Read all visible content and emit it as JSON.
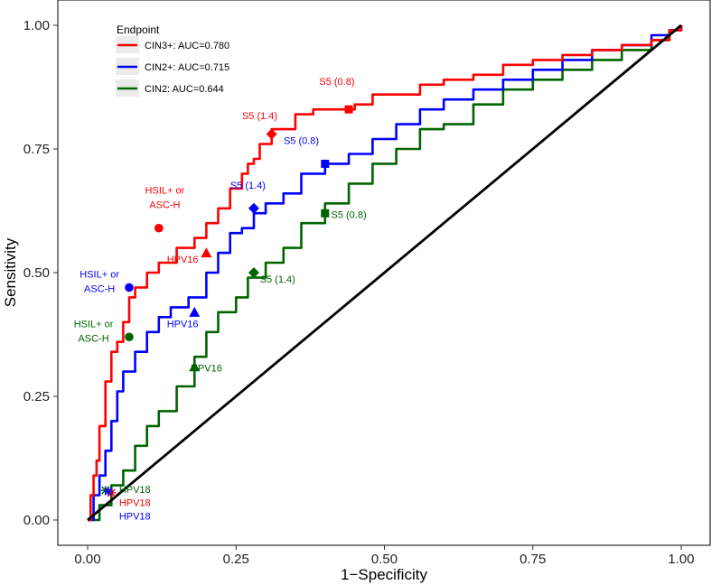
{
  "chart_data": {
    "type": "line",
    "xlabel": "1−Specificity",
    "ylabel": "Sensitivity",
    "xlim": [
      0,
      1
    ],
    "ylim": [
      0,
      1
    ],
    "x_ticks": [
      "0.00",
      "0.25",
      "0.50",
      "0.75",
      "1.00"
    ],
    "y_ticks": [
      "0.00",
      "0.25",
      "0.50",
      "0.75",
      "1.00"
    ],
    "grid": false,
    "legend": {
      "title": "Endpoint",
      "position": "top-left",
      "entries": [
        "CIN3+: AUC=0.780",
        "CIN2+: AUC=0.715",
        "CIN2: AUC=0.644"
      ]
    },
    "colors": {
      "CIN3+": "#ff0000",
      "CIN2+": "#0000ff",
      "CIN2": "#006400",
      "reference": "#000000"
    },
    "series": [
      {
        "name": "CIN3+",
        "color": "#ff0000",
        "x": [
          0,
          0.005,
          0.01,
          0.015,
          0.02,
          0.03,
          0.04,
          0.05,
          0.06,
          0.07,
          0.08,
          0.1,
          0.12,
          0.15,
          0.18,
          0.2,
          0.22,
          0.24,
          0.26,
          0.27,
          0.28,
          0.29,
          0.31,
          0.33,
          0.35,
          0.38,
          0.42,
          0.45,
          0.48,
          0.52,
          0.56,
          0.6,
          0.65,
          0.7,
          0.75,
          0.8,
          0.85,
          0.9,
          0.95,
          0.98,
          1.0
        ],
        "y": [
          0,
          0.05,
          0.09,
          0.12,
          0.19,
          0.28,
          0.34,
          0.36,
          0.4,
          0.45,
          0.47,
          0.5,
          0.52,
          0.55,
          0.57,
          0.6,
          0.63,
          0.67,
          0.7,
          0.72,
          0.73,
          0.76,
          0.79,
          0.79,
          0.82,
          0.83,
          0.83,
          0.84,
          0.86,
          0.86,
          0.88,
          0.89,
          0.9,
          0.92,
          0.93,
          0.94,
          0.95,
          0.96,
          0.97,
          0.99,
          1.0
        ]
      },
      {
        "name": "CIN2+",
        "color": "#0000ff",
        "x": [
          0,
          0.01,
          0.02,
          0.03,
          0.04,
          0.05,
          0.06,
          0.08,
          0.1,
          0.12,
          0.14,
          0.17,
          0.2,
          0.22,
          0.24,
          0.26,
          0.28,
          0.3,
          0.33,
          0.36,
          0.4,
          0.44,
          0.48,
          0.52,
          0.56,
          0.6,
          0.65,
          0.7,
          0.75,
          0.8,
          0.85,
          0.9,
          0.95,
          0.98,
          1.0
        ],
        "y": [
          0,
          0.05,
          0.09,
          0.14,
          0.2,
          0.26,
          0.3,
          0.34,
          0.38,
          0.41,
          0.43,
          0.45,
          0.5,
          0.54,
          0.58,
          0.59,
          0.62,
          0.64,
          0.66,
          0.7,
          0.72,
          0.74,
          0.77,
          0.8,
          0.83,
          0.85,
          0.87,
          0.89,
          0.91,
          0.93,
          0.95,
          0.96,
          0.98,
          0.99,
          1.0
        ]
      },
      {
        "name": "CIN2",
        "color": "#006400",
        "x": [
          0,
          0.02,
          0.04,
          0.06,
          0.08,
          0.1,
          0.12,
          0.15,
          0.18,
          0.2,
          0.22,
          0.25,
          0.27,
          0.3,
          0.33,
          0.36,
          0.4,
          0.44,
          0.48,
          0.52,
          0.56,
          0.6,
          0.65,
          0.7,
          0.75,
          0.8,
          0.85,
          0.9,
          0.95,
          0.98,
          1.0
        ],
        "y": [
          0,
          0.03,
          0.07,
          0.1,
          0.15,
          0.19,
          0.22,
          0.27,
          0.33,
          0.38,
          0.42,
          0.45,
          0.49,
          0.52,
          0.55,
          0.6,
          0.64,
          0.68,
          0.72,
          0.75,
          0.79,
          0.8,
          0.84,
          0.87,
          0.89,
          0.91,
          0.93,
          0.95,
          0.97,
          0.99,
          1.0
        ]
      },
      {
        "name": "",
        "color": "#000000",
        "x": [
          0,
          1
        ],
        "y": [
          0,
          1
        ]
      }
    ],
    "markers": [
      {
        "series": "CIN3+",
        "shape": "circle",
        "x": 0.12,
        "y": 0.59,
        "label": "HSIL+ or\nASC-H",
        "lx": 0.13,
        "ly": 0.66
      },
      {
        "series": "CIN3+",
        "shape": "triangle",
        "x": 0.2,
        "y": 0.54,
        "label": "HPV16",
        "lx": 0.16,
        "ly": 0.52
      },
      {
        "series": "CIN3+",
        "shape": "diamond",
        "x": 0.31,
        "y": 0.78,
        "label": "S5 (1.4)",
        "lx": 0.29,
        "ly": 0.81
      },
      {
        "series": "CIN3+",
        "shape": "square",
        "x": 0.44,
        "y": 0.83,
        "label": "S5 (0.8)",
        "lx": 0.42,
        "ly": 0.88
      },
      {
        "series": "CIN2+",
        "shape": "circle",
        "x": 0.07,
        "y": 0.47,
        "label": "HSIL+ or\nASC-H",
        "lx": 0.02,
        "ly": 0.49
      },
      {
        "series": "CIN2+",
        "shape": "triangle",
        "x": 0.18,
        "y": 0.42,
        "label": "HPV16",
        "lx": 0.16,
        "ly": 0.39
      },
      {
        "series": "CIN2+",
        "shape": "diamond",
        "x": 0.28,
        "y": 0.63,
        "label": "S5 (1.4)",
        "lx": 0.27,
        "ly": 0.67
      },
      {
        "series": "CIN2+",
        "shape": "square",
        "x": 0.4,
        "y": 0.72,
        "label": "S5 (0.8)",
        "lx": 0.36,
        "ly": 0.76
      },
      {
        "series": "CIN2",
        "shape": "circle",
        "x": 0.07,
        "y": 0.37,
        "label": "HSIL+ or\nASC-H",
        "lx": 0.01,
        "ly": 0.39
      },
      {
        "series": "CIN2",
        "shape": "triangle",
        "x": 0.18,
        "y": 0.31,
        "label": "HPV16",
        "lx": 0.2,
        "ly": 0.3
      },
      {
        "series": "CIN2",
        "shape": "diamond",
        "x": 0.28,
        "y": 0.5,
        "label": "S5 (1.4)",
        "lx": 0.32,
        "ly": 0.48
      },
      {
        "series": "CIN2",
        "shape": "square",
        "x": 0.4,
        "y": 0.62,
        "label": "S5 (0.8)",
        "lx": 0.44,
        "ly": 0.61
      },
      {
        "series": "CIN2",
        "shape": "star",
        "x": 0.03,
        "y": 0.06,
        "label": "HPV18",
        "lx": 0.053,
        "ly": 0.055
      },
      {
        "series": "CIN3+",
        "shape": "star",
        "x": 0.04,
        "y": 0.055,
        "label": "HPV18",
        "lx": 0.053,
        "ly": 0.028
      },
      {
        "series": "CIN2+",
        "shape": "star",
        "x": 0.035,
        "y": 0.058,
        "label": "HPV18",
        "lx": 0.053,
        "ly": 0.001
      }
    ]
  }
}
